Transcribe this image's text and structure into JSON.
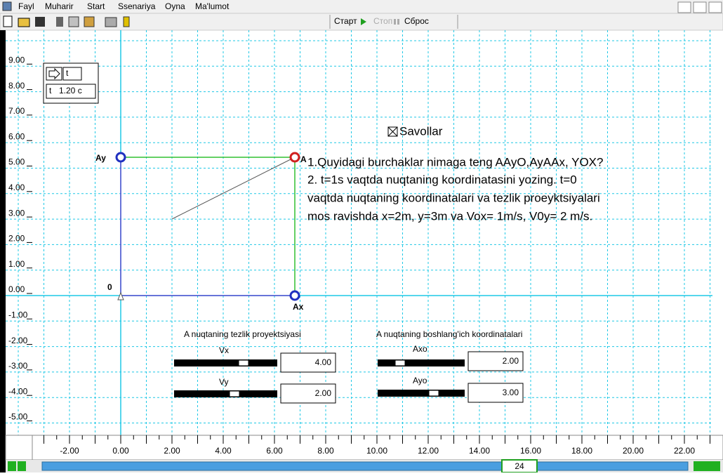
{
  "menu": [
    "Fayl",
    "Muharir",
    "Start",
    "Ssenariya",
    "Oyna",
    "Ma'lumot"
  ],
  "toolbar": {
    "start": "Старт",
    "stop": "Стоп",
    "reset": "Сброс"
  },
  "timer": {
    "button": "t",
    "label": "t",
    "value": "1.20 c"
  },
  "points": {
    "ay": "Ay",
    "a": "A",
    "o": "0",
    "ax": "Ax"
  },
  "questions": {
    "title": "Savollar",
    "lines": [
      "1.Quyidagi burchaklar nimaga teng AAyO,AyAAx, YOX?",
      "2.  t=1s vaqtda nuqtaning koordinatasini yozing. t=0",
      "vaqtda nuqtaning koordinatalari va tezlik proeyktsiyalari",
      "mos ravishda x=2m, y=3m va Vox= 1m/s, V0y= 2 m/s."
    ]
  },
  "velocity": {
    "title": "A nuqtaning tezlik proyektsiyasi",
    "vx": {
      "label": "Vx",
      "value": "4.00"
    },
    "vy": {
      "label": "Vy",
      "value": "2.00"
    }
  },
  "coords": {
    "title": "A nuqtaning boshlang'ich koordinatalari",
    "axo": {
      "label": "Axo",
      "value": "2.00"
    },
    "ayo": {
      "label": "Ayo",
      "value": "3.00"
    }
  },
  "y_ticks": [
    "9.00",
    "8.00",
    "7.00",
    "6.00",
    "5.00",
    "4.00",
    "3.00",
    "2.00",
    "1.00",
    "0.00",
    "-1.00",
    "-2.00",
    "-3.00",
    "-4.00",
    "-5.00"
  ],
  "x_ticks": [
    "-2.00",
    "0.00",
    "2.00",
    "4.00",
    "6.00",
    "8.00",
    "10.00",
    "12.00",
    "14.00",
    "16.00",
    "18.00",
    "20.00",
    "22.00"
  ],
  "scroll": "24"
}
